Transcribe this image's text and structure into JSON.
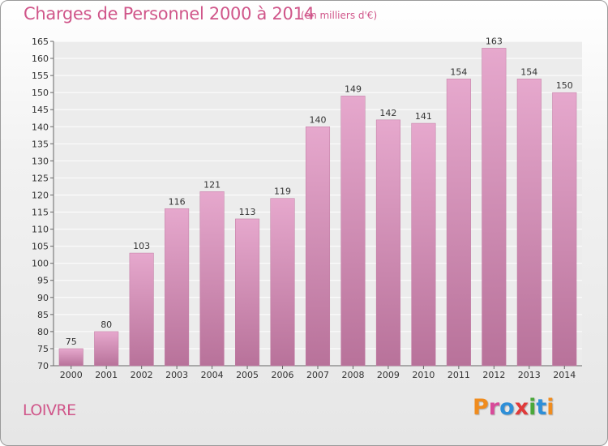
{
  "header": {
    "title": "Charges de Personnel 2000 à 2014",
    "subtitle": "(en milliers d'€)"
  },
  "footer": {
    "place": "LOIVRE",
    "logo": "Proxiti",
    "logo_colors": [
      "#f08c1e",
      "#d84a9a",
      "#2e8fd8",
      "#e03a3a",
      "#4aa83a",
      "#2e8fd8",
      "#f08c1e"
    ]
  },
  "chart_data": {
    "type": "bar",
    "categories": [
      "2000",
      "2001",
      "2002",
      "2003",
      "2004",
      "2005",
      "2006",
      "2007",
      "2008",
      "2009",
      "2010",
      "2011",
      "2012",
      "2013",
      "2014"
    ],
    "values": [
      75,
      80,
      103,
      116,
      121,
      113,
      119,
      140,
      149,
      142,
      141,
      154,
      163,
      154,
      150
    ],
    "ylim": [
      70,
      165
    ],
    "yticks": [
      70,
      75,
      80,
      85,
      90,
      95,
      100,
      105,
      110,
      115,
      120,
      125,
      130,
      135,
      140,
      145,
      150,
      155,
      160,
      165
    ],
    "grid": true,
    "bar_color_top": "#e6a8cd",
    "bar_color_bottom": "#b8729a"
  }
}
